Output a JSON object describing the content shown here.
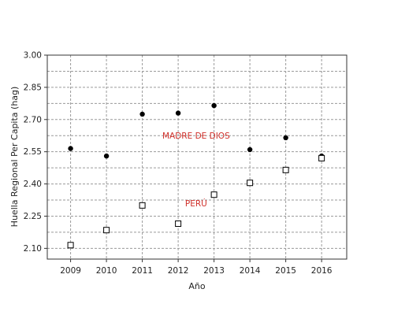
{
  "chart_data": {
    "type": "scatter",
    "title": "",
    "xlabel": "Año",
    "ylabel": "Huella Regional Per Capita (hag)",
    "x": [
      2009,
      2010,
      2011,
      2012,
      2013,
      2014,
      2015,
      2016
    ],
    "xlim": [
      2008.35,
      2016.7
    ],
    "ylim": [
      2.05,
      3.0
    ],
    "yticks": [
      2.1,
      2.25,
      2.4,
      2.55,
      2.7,
      2.85,
      3.0
    ],
    "ytick_labels": [
      "2.10",
      "2.25",
      "2.40",
      "2.55",
      "2.70",
      "2.85",
      "3.00"
    ],
    "xtick_labels": [
      "2009",
      "2010",
      "2011",
      "2012",
      "2013",
      "2014",
      "2015",
      "2016"
    ],
    "minor_y_gridlines": [
      2.175,
      2.325,
      2.475,
      2.625,
      2.775,
      2.925
    ],
    "grid": true,
    "grid_style": "dashed",
    "legend": "none",
    "series": [
      {
        "key": "madre",
        "marker": "filled-circle",
        "color": "#000000",
        "values": [
          2.565,
          2.53,
          2.725,
          2.73,
          2.765,
          2.56,
          2.615,
          2.53
        ]
      },
      {
        "key": "peru",
        "marker": "open-square",
        "color": "#000000",
        "values": [
          2.115,
          2.185,
          2.3,
          2.215,
          2.35,
          2.405,
          2.465,
          2.52
        ]
      }
    ],
    "annotations": [
      {
        "text": "MADRE DE DIOS",
        "x": 2012.5,
        "y": 2.625,
        "color": "#d0302a"
      },
      {
        "text": "PERÚ",
        "x": 2012.5,
        "y": 2.31,
        "color": "#d0302a"
      }
    ]
  }
}
